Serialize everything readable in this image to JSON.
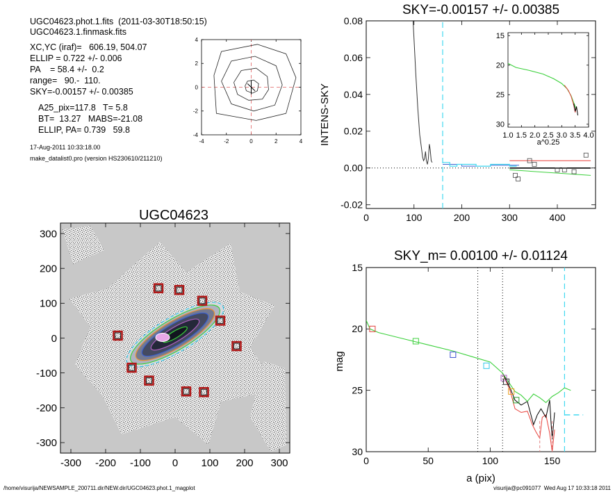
{
  "header": {
    "line1": "UGC04623.phot.1.fits  (2011-03-30T18:50:15)",
    "line2": "UGC04623.1.finmask.fits",
    "xcyc": "XC,YC (iraf)=   606.19, 504.07",
    "ellip": "ELLIP = 0.722 +/- 0.006",
    "pa": "PA    = 58.4 +/-  0.2",
    "range": "range=   90.-  110.",
    "sky": "SKY=-0.00157 +/- 0.00385",
    "a25": "A25_pix=117.8   T= 5.8",
    "bt": "BT=  13.27   MABS=-21.08",
    "ellippa": "ELLIP, PA= 0.739   59.8",
    "date": "17-Aug-2011 10:33:18.00",
    "program": "make_datalist0.pro (version HS230610/211210)"
  },
  "footer": {
    "path": "/home/visurija/NEWSAMPLE_200711.dir/NEW.dir/UGC04623.phot.1_magplot",
    "user": "visurija@pc091077  Wed Aug 17 10:33:18 2011"
  },
  "chart_data": [
    {
      "id": "contour",
      "type": "contour",
      "xlim": [
        -4,
        4
      ],
      "ylim": [
        -4,
        4
      ],
      "xticks": [
        -4,
        -2,
        0,
        2,
        4
      ],
      "yticks": [
        -4,
        -2,
        0,
        2,
        4
      ],
      "contours": [
        [
          [
            -0.5,
            0.1
          ],
          [
            -0.3,
            0.5
          ],
          [
            0.2,
            0.6
          ],
          [
            0.6,
            0.3
          ],
          [
            0.5,
            -0.3
          ],
          [
            0.1,
            -0.5
          ],
          [
            -0.4,
            -0.3
          ]
        ],
        [
          [
            -1.4,
            0.4
          ],
          [
            -0.8,
            1.4
          ],
          [
            0.4,
            1.6
          ],
          [
            1.3,
            0.9
          ],
          [
            1.4,
            -0.2
          ],
          [
            0.9,
            -1.0
          ],
          [
            -0.2,
            -1.1
          ],
          [
            -1.1,
            -0.6
          ]
        ],
        [
          [
            -2.4,
            0.5
          ],
          [
            -1.6,
            2.2
          ],
          [
            0.3,
            2.6
          ],
          [
            2.0,
            1.8
          ],
          [
            2.5,
            0.2
          ],
          [
            1.9,
            -1.5
          ],
          [
            0.2,
            -2.0
          ],
          [
            -1.6,
            -1.4
          ]
        ],
        [
          [
            -3.0,
            1.0
          ],
          [
            -2.4,
            3.0
          ],
          [
            0.5,
            3.6
          ],
          [
            2.8,
            2.8
          ],
          [
            3.6,
            0.8
          ],
          [
            2.8,
            -2.2
          ],
          [
            0.4,
            -2.8
          ],
          [
            -2.8,
            -2.2
          ]
        ]
      ]
    },
    {
      "id": "sky",
      "type": "line",
      "title": "SKY=-0.00157 +/- 0.00385",
      "ylabel": "INTENS-SKY",
      "xlim": [
        0,
        480
      ],
      "ylim": [
        -0.022,
        0.08
      ],
      "xticks": [
        0,
        100,
        200,
        300,
        400
      ],
      "yticks": [
        -0.02,
        0.0,
        0.02,
        0.04,
        0.06,
        0.08
      ],
      "ytick_labels": [
        "-0.02",
        "0.00",
        "0.02",
        "0.04",
        "0.06",
        "0.08"
      ],
      "vline_cyan": 160,
      "profile": {
        "x": [
          98,
          100,
          104,
          108,
          112,
          116,
          118,
          120,
          122,
          124,
          126,
          128,
          130,
          132,
          134,
          136,
          138
        ],
        "y": [
          0.08,
          0.07,
          0.05,
          0.032,
          0.018,
          0.01,
          0.006,
          0.004,
          0.005,
          0.009,
          0.004,
          0.002,
          0.005,
          0.013,
          0.01,
          0.004,
          0.003
        ]
      },
      "cyan_step": {
        "x": [
          160,
          175,
          175,
          190,
          190,
          230,
          230,
          260,
          260,
          300,
          300,
          315
        ],
        "y": [
          0.003,
          0.003,
          0.001,
          0.001,
          0.002,
          0.002,
          0.001,
          0.001,
          0.002,
          0.002,
          0.001,
          0.001
        ]
      },
      "blue_step": {
        "x": [
          160,
          200,
          200,
          260,
          260,
          320
        ],
        "y": [
          0.002,
          0.002,
          0.001,
          0.001,
          0.0015,
          0.0015
        ]
      },
      "green_line": {
        "x": [
          300,
          470
        ],
        "y": [
          -0.001,
          -0.004
        ]
      },
      "red_line": {
        "x": [
          300,
          470
        ],
        "y": [
          0.004,
          0.004
        ]
      },
      "black_line": {
        "x": [
          300,
          470
        ],
        "y": [
          0.0,
          0.0
        ]
      },
      "squares": [
        [
          312,
          -0.004
        ],
        [
          318,
          -0.006
        ],
        [
          342,
          0.004
        ],
        [
          352,
          0.002
        ],
        [
          400,
          -0.001
        ],
        [
          415,
          -0.001
        ],
        [
          435,
          -0.002
        ],
        [
          460,
          0.007
        ]
      ]
    },
    {
      "id": "inset",
      "type": "line",
      "xlabel": "a^0.25",
      "xlim": [
        1.0,
        4.0
      ],
      "ylim": [
        30.5,
        14.5
      ],
      "xticks": [
        1.0,
        1.5,
        2.0,
        2.5,
        3.0,
        3.5,
        4.0
      ],
      "xtick_labels": [
        "1.0",
        "1.5",
        "2.0",
        "2.5",
        "3.0",
        "3.5",
        "4.0"
      ],
      "yticks": [
        15,
        20,
        25,
        30
      ],
      "green": {
        "x": [
          1.0,
          1.3,
          1.8,
          2.3,
          2.7,
          3.0,
          3.2,
          3.35,
          3.45,
          3.55
        ],
        "y": [
          19.7,
          20.4,
          20.9,
          21.5,
          22.3,
          23.1,
          24.0,
          25.2,
          26.4,
          27.5
        ]
      },
      "red": {
        "x": [
          3.1,
          3.25,
          3.35,
          3.45,
          3.5,
          3.55
        ],
        "y": [
          23.4,
          24.3,
          25.3,
          26.8,
          28.0,
          27.0
        ]
      },
      "black": {
        "x": [
          3.45,
          3.5,
          3.55,
          3.6
        ],
        "y": [
          26.5,
          27.8,
          27.0,
          28.5
        ]
      }
    },
    {
      "id": "image",
      "type": "image",
      "title": "UGC04623",
      "xlim": [
        -330,
        330
      ],
      "ylim": [
        -330,
        330
      ],
      "xticks": [
        -300,
        -200,
        -100,
        0,
        100,
        200,
        300
      ],
      "yticks": [
        -300,
        -200,
        -100,
        0,
        100,
        200,
        300
      ],
      "galaxy": {
        "cx": 0,
        "cy": 10,
        "pa_deg": 31,
        "ellipses": [
          [
            40,
            10
          ],
          [
            80,
            20
          ],
          [
            110,
            30
          ],
          [
            130,
            38
          ],
          [
            148,
            44
          ],
          [
            160,
            50
          ]
        ]
      },
      "markers": [
        [
          -48,
          143
        ],
        [
          12,
          138
        ],
        [
          78,
          107
        ],
        [
          130,
          50
        ],
        [
          177,
          -23
        ],
        [
          -165,
          7
        ],
        [
          -125,
          -85
        ],
        [
          -75,
          -122
        ],
        [
          32,
          -153
        ],
        [
          83,
          -155
        ]
      ]
    },
    {
      "id": "mag",
      "type": "line",
      "title": "SKY_m=  0.00100 +/- 0.01124",
      "xlabel": "a (pix)",
      "ylabel": "mag",
      "xlim": [
        0,
        185
      ],
      "ylim": [
        30,
        15
      ],
      "xticks": [
        0,
        50,
        100,
        150
      ],
      "yticks": [
        15,
        20,
        25,
        30
      ],
      "vlines_dotted": [
        90,
        110
      ],
      "vline_cyan": 160,
      "cyan_dash_h": {
        "x": [
          160,
          175
        ],
        "y": [
          27.0,
          27.0
        ]
      },
      "green": {
        "x": [
          0,
          3,
          10,
          30,
          50,
          70,
          90,
          100,
          110,
          116,
          120,
          125,
          130,
          135,
          140,
          145,
          150,
          155,
          160,
          165
        ],
        "y": [
          19.3,
          20.0,
          20.3,
          20.8,
          21.3,
          21.8,
          22.4,
          22.7,
          23.6,
          24.5,
          25.1,
          25.4,
          25.9,
          25.3,
          25.6,
          26.0,
          25.5,
          25.2,
          24.8,
          25.0
        ]
      },
      "black": {
        "x": [
          110,
          116,
          120,
          125,
          130,
          135,
          138,
          141,
          145,
          148,
          149,
          150,
          152
        ],
        "y": [
          23.6,
          24.8,
          25.8,
          26.2,
          25.9,
          27.8,
          27.0,
          26.5,
          27.2,
          25.8,
          27.5,
          29.0,
          26.8
        ]
      },
      "red": {
        "x": [
          110,
          116,
          120,
          125,
          130,
          134,
          137,
          140,
          142,
          145,
          148,
          150,
          152
        ],
        "y": [
          23.6,
          25.0,
          26.5,
          26.8,
          26.7,
          27.8,
          28.4,
          28.9,
          27.2,
          27.0,
          28.5,
          30.0,
          28.2
        ]
      },
      "squares": [
        {
          "x": 5,
          "y": 20.0,
          "color": "#e0403a"
        },
        {
          "x": 40,
          "y": 21.0,
          "color": "#40d040"
        },
        {
          "x": 70,
          "y": 22.1,
          "color": "#3a50d0"
        },
        {
          "x": 97,
          "y": 23.0,
          "color": "#30c8e8"
        },
        {
          "x": 111,
          "y": 24.0,
          "color": "#b060c0"
        },
        {
          "x": 113,
          "y": 24.3,
          "color": "#333333"
        },
        {
          "x": 117,
          "y": 25.1,
          "color": "#e8a020"
        },
        {
          "x": 121,
          "y": 25.8,
          "color": "#30a030"
        }
      ]
    }
  ],
  "colors": {
    "cyan": "#40d8f0",
    "green": "#3ad03a",
    "red": "#e8403a",
    "blue": "#3a60d0",
    "marker_red": "#b01818",
    "gray_bg": "#c8c8c8"
  }
}
